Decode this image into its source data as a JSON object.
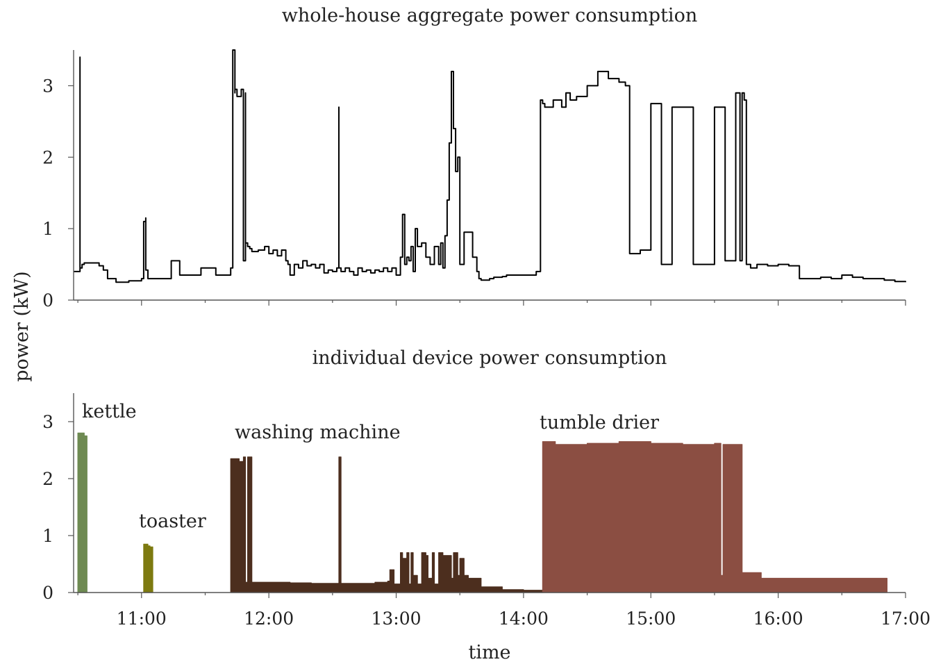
{
  "chart_data": [
    {
      "type": "line",
      "title": "whole-house aggregate power consumption",
      "ylabel": "power (kW)",
      "xlabel": "",
      "xlim": [
        "10:28",
        "17:00"
      ],
      "ylim": [
        0,
        3.5
      ],
      "yticks": [
        0,
        1,
        2,
        3
      ],
      "ytick_labels": [
        "0",
        "1",
        "2",
        "3"
      ],
      "grid": false,
      "series": [
        {
          "color": "#000000",
          "x": [
            "10:28",
            "10:30",
            "10:31",
            "10:31",
            "10:32",
            "10:33",
            "10:38",
            "10:40",
            "10:42",
            "10:44",
            "10:48",
            "10:52",
            "10:54",
            "11:00",
            "11:01",
            "11:02",
            "11:02",
            "11:03",
            "11:03",
            "11:07",
            "11:12",
            "11:14",
            "11:17",
            "11:18",
            "11:23",
            "11:28",
            "11:30",
            "11:32",
            "11:35",
            "11:42",
            "11:43",
            "11:44",
            "11:44",
            "11:45",
            "11:47",
            "11:48",
            "11:49",
            "11:49",
            "11:50",
            "11:51",
            "11:52",
            "11:55",
            "11:58",
            "12:00",
            "12:02",
            "12:04",
            "12:06",
            "12:08",
            "12:09",
            "12:10",
            "12:12",
            "12:14",
            "12:16",
            "12:18",
            "12:20",
            "12:22",
            "12:24",
            "12:26",
            "12:28",
            "12:30",
            "12:32",
            "12:33",
            "12:33",
            "12:34",
            "12:36",
            "12:38",
            "12:40",
            "12:42",
            "12:44",
            "12:46",
            "12:48",
            "12:50",
            "12:52",
            "12:54",
            "12:56",
            "12:58",
            "13:00",
            "13:02",
            "13:03",
            "13:04",
            "13:05",
            "13:06",
            "13:07",
            "13:08",
            "13:09",
            "13:10",
            "13:12",
            "13:14",
            "13:16",
            "13:18",
            "13:20",
            "13:21",
            "13:22",
            "13:23",
            "13:24",
            "13:25",
            "13:26",
            "13:27",
            "13:28",
            "13:29",
            "13:30",
            "13:32",
            "13:34",
            "13:35",
            "13:36",
            "13:38",
            "13:39",
            "13:40",
            "13:42",
            "13:44",
            "13:46",
            "13:48",
            "13:50",
            "13:52",
            "14:00",
            "14:06",
            "14:08",
            "14:09",
            "14:10",
            "14:14",
            "14:18",
            "14:20",
            "14:22",
            "14:25",
            "14:30",
            "14:35",
            "14:40",
            "14:43",
            "14:45",
            "14:48",
            "14:50",
            "14:55",
            "15:00",
            "15:05",
            "15:10",
            "15:20",
            "15:30",
            "15:35",
            "15:40",
            "15:42",
            "15:43",
            "15:44",
            "15:45",
            "15:47",
            "15:50",
            "15:55",
            "16:00",
            "16:05",
            "16:10",
            "16:15",
            "16:20",
            "16:25",
            "16:30",
            "16:35",
            "16:40",
            "16:45",
            "16:50",
            "16:55",
            "17:00"
          ],
          "y": [
            0.4,
            0.4,
            3.4,
            0.45,
            0.5,
            0.52,
            0.52,
            0.48,
            0.42,
            0.3,
            0.25,
            0.25,
            0.27,
            0.3,
            1.1,
            1.15,
            0.42,
            0.4,
            0.3,
            0.3,
            0.3,
            0.55,
            0.55,
            0.35,
            0.35,
            0.45,
            0.45,
            0.45,
            0.35,
            0.45,
            3.5,
            2.9,
            2.95,
            2.85,
            2.95,
            0.55,
            2.9,
            0.8,
            0.75,
            0.72,
            0.68,
            0.7,
            0.75,
            0.65,
            0.7,
            0.62,
            0.7,
            0.55,
            0.5,
            0.35,
            0.5,
            0.45,
            0.55,
            0.48,
            0.5,
            0.45,
            0.5,
            0.38,
            0.42,
            0.4,
            0.45,
            2.7,
            0.45,
            0.4,
            0.45,
            0.4,
            0.35,
            0.45,
            0.4,
            0.42,
            0.38,
            0.42,
            0.4,
            0.45,
            0.4,
            0.45,
            0.35,
            0.6,
            1.2,
            0.5,
            0.6,
            0.55,
            0.75,
            0.4,
            1.0,
            0.75,
            0.8,
            0.6,
            0.5,
            0.75,
            0.5,
            0.8,
            0.45,
            0.9,
            1.4,
            2.2,
            3.2,
            2.4,
            1.8,
            2.0,
            0.5,
            0.95,
            0.95,
            0.95,
            0.6,
            0.4,
            0.3,
            0.28,
            0.28,
            0.3,
            0.32,
            0.32,
            0.33,
            0.35,
            0.35,
            0.4,
            2.8,
            2.75,
            2.7,
            2.8,
            2.7,
            2.9,
            2.8,
            2.85,
            3.0,
            3.2,
            3.1,
            3.1,
            3.05,
            3.0,
            0.65,
            0.7,
            2.75,
            0.5,
            2.7,
            0.5,
            2.7,
            0.55,
            2.9,
            0.55,
            2.9,
            2.8,
            0.5,
            0.45,
            0.5,
            0.48,
            0.5,
            0.48,
            0.3,
            0.3,
            0.32,
            0.3,
            0.35,
            0.32,
            0.3,
            0.3,
            0.28,
            0.26,
            0.25
          ]
        }
      ]
    },
    {
      "type": "area",
      "title": "individual device power consumption",
      "ylabel": "power (kW)",
      "xlabel": "time",
      "xlim": [
        "10:28",
        "17:00"
      ],
      "ylim": [
        0,
        3.5
      ],
      "yticks": [
        0,
        1,
        2,
        3
      ],
      "ytick_labels": [
        "0",
        "1",
        "2",
        "3"
      ],
      "xticks": [
        "11:00",
        "12:00",
        "13:00",
        "14:00",
        "15:00",
        "16:00",
        "17:00"
      ],
      "grid": false,
      "series": [
        {
          "name": "kettle",
          "color": "#6e8a52",
          "label_color": "#7e9468",
          "x": [
            "10:30",
            "10:31",
            "10:32",
            "10:33"
          ],
          "y": [
            2.8,
            2.8,
            2.8,
            2.75
          ]
        },
        {
          "name": "toaster",
          "color": "#7d7a10",
          "label_color": "#8a8830",
          "x": [
            "11:01",
            "11:02",
            "11:03",
            "11:04"
          ],
          "y": [
            0.85,
            0.85,
            0.82,
            0.8
          ]
        },
        {
          "name": "washing machine",
          "color": "#4c2e1e",
          "label_color": "#5a3a2a",
          "x": [
            "11:42",
            "11:44",
            "11:46",
            "11:48",
            "11:49",
            "11:50",
            "11:52",
            "11:54",
            "12:00",
            "12:10",
            "12:20",
            "12:30",
            "12:33",
            "12:34",
            "12:40",
            "12:50",
            "12:56",
            "12:57",
            "12:59",
            "13:02",
            "13:03",
            "13:05",
            "13:06",
            "13:07",
            "13:08",
            "13:10",
            "13:12",
            "13:14",
            "13:15",
            "13:17",
            "13:18",
            "13:20",
            "13:22",
            "13:26",
            "13:27",
            "13:29",
            "13:30",
            "13:32",
            "13:34",
            "13:38",
            "13:40",
            "13:50",
            "14:00",
            "14:08"
          ],
          "y": [
            2.35,
            2.35,
            2.3,
            2.38,
            0.18,
            2.38,
            0.18,
            0.18,
            0.18,
            0.17,
            0.16,
            0.16,
            2.38,
            0.16,
            0.16,
            0.18,
            0.2,
            0.4,
            0.15,
            0.7,
            0.6,
            0.7,
            0.15,
            0.7,
            0.3,
            0.15,
            0.7,
            0.65,
            0.25,
            0.7,
            0.15,
            0.7,
            0.65,
            0.25,
            0.7,
            0.3,
            0.6,
            0.3,
            0.25,
            0.25,
            0.1,
            0.05,
            0.04,
            0.04
          ]
        },
        {
          "name": "tumble drier",
          "color": "#8b4e42",
          "label_color": "#945a4e",
          "x": [
            "14:09",
            "14:15",
            "14:30",
            "14:45",
            "15:00",
            "15:15",
            "15:30",
            "15:32",
            "15:33",
            "15:34",
            "15:40",
            "15:42",
            "15:43",
            "15:50",
            "15:52",
            "16:00",
            "16:30",
            "16:50"
          ],
          "y": [
            2.65,
            2.6,
            2.62,
            2.65,
            2.62,
            2.6,
            2.62,
            2.62,
            0.3,
            2.6,
            2.6,
            2.6,
            0.35,
            0.35,
            0.25,
            0.25,
            0.25,
            0.25
          ]
        }
      ]
    }
  ]
}
